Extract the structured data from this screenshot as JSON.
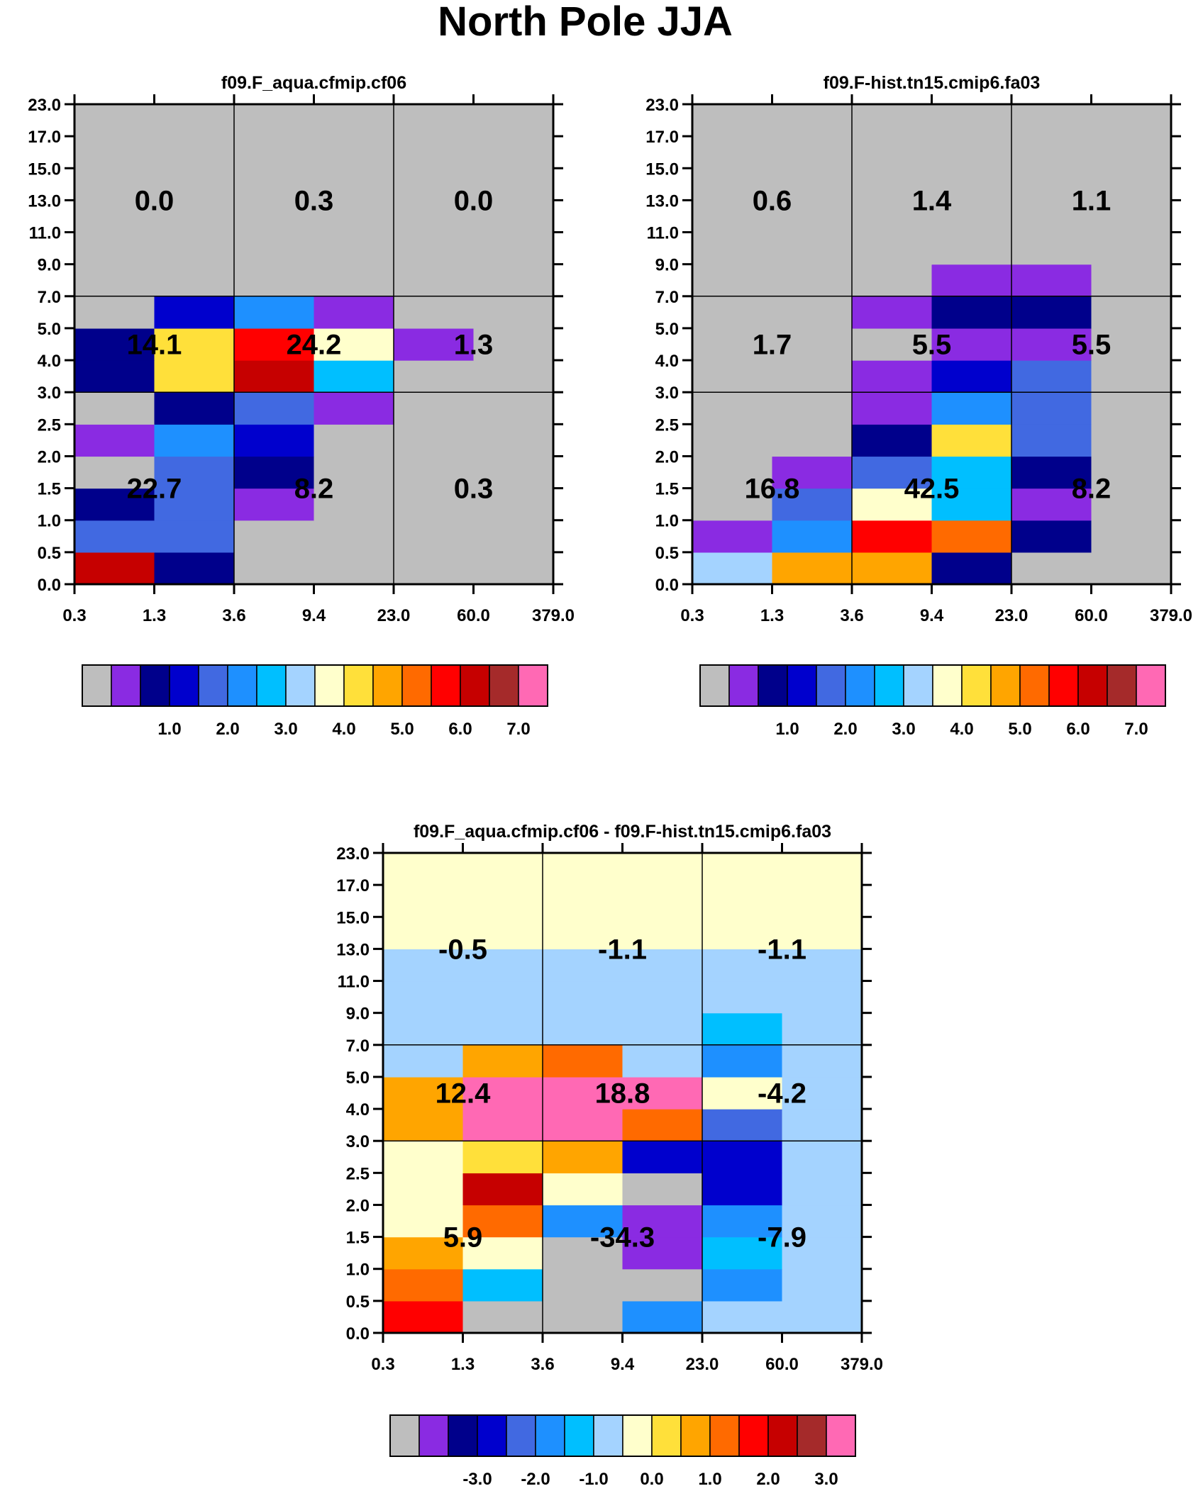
{
  "title": "North Pole JJA",
  "palette": {
    "c0": "#bebebe",
    "c1": "#8a2be2",
    "c2": "#00008b",
    "c3": "#0000cd",
    "c4": "#4169e1",
    "c5": "#1e90ff",
    "c6": "#00bfff",
    "c7": "#a4d3ff",
    "c8": "#ffffcc",
    "c9": "#ffe03a",
    "c10": "#ffa500",
    "c11": "#ff6a00",
    "c12": "#ff0000",
    "c13": "#c60000",
    "c14": "#a52a2a",
    "c15": "#ff69b4"
  },
  "chart_data": [
    {
      "type": "heatmap",
      "title": "f09.F_aqua.cfmip.cf06",
      "x_ticks": [
        "0.3",
        "1.3",
        "3.6",
        "9.4",
        "23.0",
        "60.0",
        "379.0"
      ],
      "y_ticks": [
        "0.0",
        "0.5",
        "1.0",
        "1.5",
        "2.0",
        "2.5",
        "3.0",
        "4.0",
        "5.0",
        "7.0",
        "9.0",
        "11.0",
        "13.0",
        "15.0",
        "17.0",
        "23.0"
      ],
      "grid": {
        "rows": [
          "c13,c2,c0,c0,c0,c0",
          "c4,c4,c0,c0,c0,c0",
          "c2,c4,c1,c0,c0,c0",
          "c0,c4,c2,c0,c0,c0",
          "c1,c5,c3,c0,c0,c0",
          "c0,c2,c4,c1,c0,c0",
          "c2,c9,c13,c6,c0,c0",
          "c2,c9,c12,c8,c1,c0",
          "c0,c3,c5,c1,c0,c0",
          "c0,c0,c0,c0,c0,c0",
          "c0,c0,c0,c0,c0,c0",
          "c0,c0,c0,c0,c0,c0",
          "c0,c0,c0,c0,c0,c0",
          "c0,c0,c0,c0,c0,c0",
          "c0,c0,c0,c0,c0,c0"
        ]
      },
      "bin_labels": [
        {
          "row": 0,
          "col": 0,
          "text": "22.7"
        },
        {
          "row": 0,
          "col": 1,
          "text": "8.2"
        },
        {
          "row": 0,
          "col": 2,
          "text": "0.3"
        },
        {
          "row": 1,
          "col": 0,
          "text": "14.1"
        },
        {
          "row": 1,
          "col": 1,
          "text": "24.2"
        },
        {
          "row": 1,
          "col": 2,
          "text": "1.3"
        },
        {
          "row": 2,
          "col": 0,
          "text": "0.0"
        },
        {
          "row": 2,
          "col": 1,
          "text": "0.3"
        },
        {
          "row": 2,
          "col": 2,
          "text": "0.0"
        }
      ],
      "colorbar": {
        "labels": [
          "1.0",
          "2.0",
          "3.0",
          "4.0",
          "5.0",
          "6.0",
          "7.0"
        ]
      }
    },
    {
      "type": "heatmap",
      "title": "f09.F-hist.tn15.cmip6.fa03",
      "x_ticks": [
        "0.3",
        "1.3",
        "3.6",
        "9.4",
        "23.0",
        "60.0",
        "379.0"
      ],
      "y_ticks": [
        "0.0",
        "0.5",
        "1.0",
        "1.5",
        "2.0",
        "2.5",
        "3.0",
        "4.0",
        "5.0",
        "7.0",
        "9.0",
        "11.0",
        "13.0",
        "15.0",
        "17.0",
        "23.0"
      ],
      "grid": {
        "rows": [
          "c7,c10,c10,c2,c0,c0",
          "c1,c5,c12,c11,c2,c0",
          "c0,c4,c8,c6,c1,c0",
          "c0,c1,c4,c6,c2,c0",
          "c0,c0,c2,c9,c4,c0",
          "c0,c0,c1,c5,c4,c0",
          "c0,c0,c1,c3,c4,c0",
          "c0,c0,c0,c1,c1,c0",
          "c0,c0,c1,c2,c2,c0",
          "c0,c0,c0,c1,c1,c0",
          "c0,c0,c0,c0,c0,c0",
          "c0,c0,c0,c0,c0,c0",
          "c0,c0,c0,c0,c0,c0",
          "c0,c0,c0,c0,c0,c0",
          "c0,c0,c0,c0,c0,c0"
        ]
      },
      "bin_labels": [
        {
          "row": 0,
          "col": 0,
          "text": "16.8"
        },
        {
          "row": 0,
          "col": 1,
          "text": "42.5"
        },
        {
          "row": 0,
          "col": 2,
          "text": "8.2"
        },
        {
          "row": 1,
          "col": 0,
          "text": "1.7"
        },
        {
          "row": 1,
          "col": 1,
          "text": "5.5"
        },
        {
          "row": 1,
          "col": 2,
          "text": "5.5"
        },
        {
          "row": 2,
          "col": 0,
          "text": "0.6"
        },
        {
          "row": 2,
          "col": 1,
          "text": "1.4"
        },
        {
          "row": 2,
          "col": 2,
          "text": "1.1"
        }
      ],
      "colorbar": {
        "labels": [
          "1.0",
          "2.0",
          "3.0",
          "4.0",
          "5.0",
          "6.0",
          "7.0"
        ]
      }
    },
    {
      "type": "heatmap",
      "title": "f09.F_aqua.cfmip.cf06 - f09.F-hist.tn15.cmip6.fa03",
      "x_ticks": [
        "0.3",
        "1.3",
        "3.6",
        "9.4",
        "23.0",
        "60.0",
        "379.0"
      ],
      "y_ticks": [
        "0.0",
        "0.5",
        "1.0",
        "1.5",
        "2.0",
        "2.5",
        "3.0",
        "4.0",
        "5.0",
        "7.0",
        "9.0",
        "11.0",
        "13.0",
        "15.0",
        "17.0",
        "23.0"
      ],
      "grid": {
        "rows": [
          "c12,c0,c0,c5,c7,c7",
          "c11,c6,c0,c0,c5,c7",
          "c10,c8,c0,c1,c6,c7",
          "c8,c11,c5,c1,c5,c7",
          "c8,c13,c8,c0,c3,c7",
          "c8,c9,c10,c3,c3,c7",
          "c10,c15,c15,c11,c4,c7",
          "c10,c15,c15,c15,c8,c7",
          "c7,c10,c11,c7,c5,c7",
          "c7,c7,c7,c7,c6,c7",
          "c7,c7,c7,c7,c7,c7",
          "c7,c7,c7,c7,c7,c7",
          "c8,c8,c8,c8,c8,c8",
          "c8,c8,c8,c8,c8,c8",
          "c8,c8,c8,c8,c8,c8"
        ]
      },
      "bin_labels": [
        {
          "row": 0,
          "col": 0,
          "text": "5.9"
        },
        {
          "row": 0,
          "col": 1,
          "text": "-34.3"
        },
        {
          "row": 0,
          "col": 2,
          "text": "-7.9"
        },
        {
          "row": 1,
          "col": 0,
          "text": "12.4"
        },
        {
          "row": 1,
          "col": 1,
          "text": "18.8"
        },
        {
          "row": 1,
          "col": 2,
          "text": "-4.2"
        },
        {
          "row": 2,
          "col": 0,
          "text": "-0.5"
        },
        {
          "row": 2,
          "col": 1,
          "text": "-1.1"
        },
        {
          "row": 2,
          "col": 2,
          "text": "-1.1"
        }
      ],
      "colorbar": {
        "labels": [
          "-3.0",
          "-2.0",
          "-1.0",
          "0.0",
          "1.0",
          "2.0",
          "3.0"
        ]
      }
    }
  ]
}
